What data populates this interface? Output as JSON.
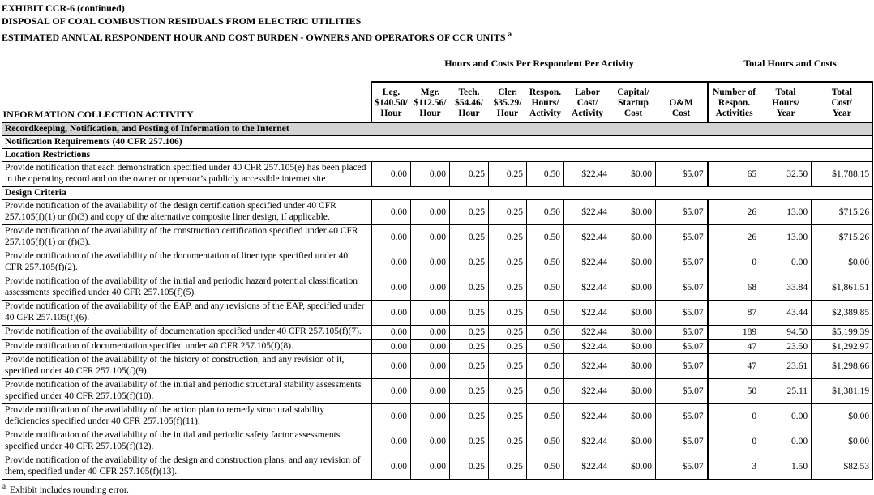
{
  "title": {
    "line1": "EXHIBIT CCR-6 (continued)",
    "line2": "DISPOSAL OF COAL COMBUSTION RESIDUALS FROM ELECTRIC UTILITIES",
    "line3": "ESTIMATED ANNUAL RESPONDENT HOUR AND COST BURDEN - OWNERS AND OPERATORS OF CCR UNITS",
    "line3_sup": "a"
  },
  "table": {
    "group_headers": [
      "Hours and Costs Per Respondent Per Activity",
      "Total Hours and Costs"
    ],
    "activity_header": "INFORMATION COLLECTION ACTIVITY",
    "columns": [
      {
        "lines": [
          "Leg.",
          "$140.50/",
          "Hour"
        ]
      },
      {
        "lines": [
          "Mgr.",
          "$112.56/",
          "Hour"
        ]
      },
      {
        "lines": [
          "Tech.",
          "$54.46/",
          "Hour"
        ]
      },
      {
        "lines": [
          "Cler.",
          "$35.29/",
          "Hour"
        ]
      },
      {
        "lines": [
          "Respon.",
          "Hours/",
          "Activity"
        ]
      },
      {
        "lines": [
          "Labor",
          "Cost/",
          "Activity"
        ]
      },
      {
        "lines": [
          "Capital/",
          "Startup",
          "Cost"
        ]
      },
      {
        "lines": [
          "O&M",
          "Cost"
        ]
      },
      {
        "lines": [
          "Number of",
          "Respon.",
          "Activities"
        ]
      },
      {
        "lines": [
          "Total",
          "Hours/",
          "Year"
        ]
      },
      {
        "lines": [
          "Total",
          "Cost/",
          "Year"
        ]
      }
    ],
    "rows": [
      {
        "type": "section",
        "shaded": true,
        "label": "Recordkeeping, Notification, and Posting of Information to the Internet"
      },
      {
        "type": "section",
        "shaded": false,
        "label": "Notification Requirements (40 CFR 257.106)"
      },
      {
        "type": "section",
        "shaded": false,
        "label": "Location Restrictions"
      },
      {
        "type": "data",
        "activity": "Provide notification that each demonstration specified under 40 CFR 257.105(e) has been placed in the operating record and on the owner or operator’s publicly accessible internet site",
        "values": [
          "0.00",
          "0.00",
          "0.25",
          "0.25",
          "0.50",
          "$22.44",
          "$0.00",
          "$5.07",
          "65",
          "32.50",
          "$1,788.15"
        ]
      },
      {
        "type": "section",
        "shaded": false,
        "label": "Design Criteria"
      },
      {
        "type": "data",
        "activity": "Provide notification of the availability of the design certification specified under 40 CFR 257.105(f)(1) or (f)(3) and copy of the alternative composite liner design, if applicable.",
        "values": [
          "0.00",
          "0.00",
          "0.25",
          "0.25",
          "0.50",
          "$22.44",
          "$0.00",
          "$5.07",
          "26",
          "13.00",
          "$715.26"
        ]
      },
      {
        "type": "data",
        "activity": "Provide notification of the availability of the construction certification specified under 40 CFR 257.105(f)(1) or (f)(3).",
        "values": [
          "0.00",
          "0.00",
          "0.25",
          "0.25",
          "0.50",
          "$22.44",
          "$0.00",
          "$5.07",
          "26",
          "13.00",
          "$715.26"
        ]
      },
      {
        "type": "data",
        "activity": "Provide notification of the availability of the documentation of liner type specified under 40 CFR 257.105(f)(2).",
        "values": [
          "0.00",
          "0.00",
          "0.25",
          "0.25",
          "0.50",
          "$22.44",
          "$0.00",
          "$5.07",
          "0",
          "0.00",
          "$0.00"
        ]
      },
      {
        "type": "data",
        "activity": "Provide notification of the availability of the initial and periodic hazard potential classification assessments specified under 40 CFR 257.105(f)(5).",
        "values": [
          "0.00",
          "0.00",
          "0.25",
          "0.25",
          "0.50",
          "$22.44",
          "$0.00",
          "$5.07",
          "68",
          "33.84",
          "$1,861.51"
        ]
      },
      {
        "type": "data",
        "activity": "Provide notification of the availability of the EAP, and any revisions of the EAP, specified under 40 CFR 257.105(f)(6).",
        "values": [
          "0.00",
          "0.00",
          "0.25",
          "0.25",
          "0.50",
          "$22.44",
          "$0.00",
          "$5.07",
          "87",
          "43.44",
          "$2,389.85"
        ]
      },
      {
        "type": "data",
        "activity": "Provide notification of the availability of documentation specified under 40 CFR 257.105(f)(7).",
        "values": [
          "0.00",
          "0.00",
          "0.25",
          "0.25",
          "0.50",
          "$22.44",
          "$0.00",
          "$5.07",
          "189",
          "94.50",
          "$5,199.39"
        ]
      },
      {
        "type": "data",
        "activity": "Provide notification of documentation specified under 40 CFR 257.105(f)(8).",
        "values": [
          "0.00",
          "0.00",
          "0.25",
          "0.25",
          "0.50",
          "$22.44",
          "$0.00",
          "$5.07",
          "47",
          "23.50",
          "$1,292.97"
        ]
      },
      {
        "type": "data",
        "activity": "Provide notification of the availability of the history of construction, and any revision of it, specified under 40 CFR 257.105(f)(9).",
        "values": [
          "0.00",
          "0.00",
          "0.25",
          "0.25",
          "0.50",
          "$22.44",
          "$0.00",
          "$5.07",
          "47",
          "23.61",
          "$1,298.66"
        ]
      },
      {
        "type": "data",
        "activity": "Provide notification of the availability of the initial and periodic structural stability assessments specified under 40 CFR 257.105(f)(10).",
        "values": [
          "0.00",
          "0.00",
          "0.25",
          "0.25",
          "0.50",
          "$22.44",
          "$0.00",
          "$5.07",
          "50",
          "25.11",
          "$1,381.19"
        ]
      },
      {
        "type": "data",
        "activity": "Provide notification of the availability of the action plan to remedy structural stability deficiencies specified under 40 CFR 257.105(f)(11).",
        "values": [
          "0.00",
          "0.00",
          "0.25",
          "0.25",
          "0.50",
          "$22.44",
          "$0.00",
          "$5.07",
          "0",
          "0.00",
          "$0.00"
        ]
      },
      {
        "type": "data",
        "activity": "Provide notification of the availability of the initial and periodic safety factor assessments specified under 40 CFR 257.105(f)(12).",
        "values": [
          "0.00",
          "0.00",
          "0.25",
          "0.25",
          "0.50",
          "$22.44",
          "$0.00",
          "$5.07",
          "0",
          "0.00",
          "$0.00"
        ]
      },
      {
        "type": "data",
        "activity": "Provide notification of the availability of the design and construction plans, and any revision of them, specified under 40 CFR 257.105(f)(13).",
        "values": [
          "0.00",
          "0.00",
          "0.25",
          "0.25",
          "0.50",
          "$22.44",
          "$0.00",
          "$5.07",
          "3",
          "1.50",
          "$82.53"
        ]
      }
    ]
  },
  "footnote": {
    "sup": "a",
    "text": "Exhibit includes rounding error."
  },
  "colors": {
    "section_shade": "#d3d3d3",
    "border": "#000000",
    "background": "#ffffff"
  }
}
